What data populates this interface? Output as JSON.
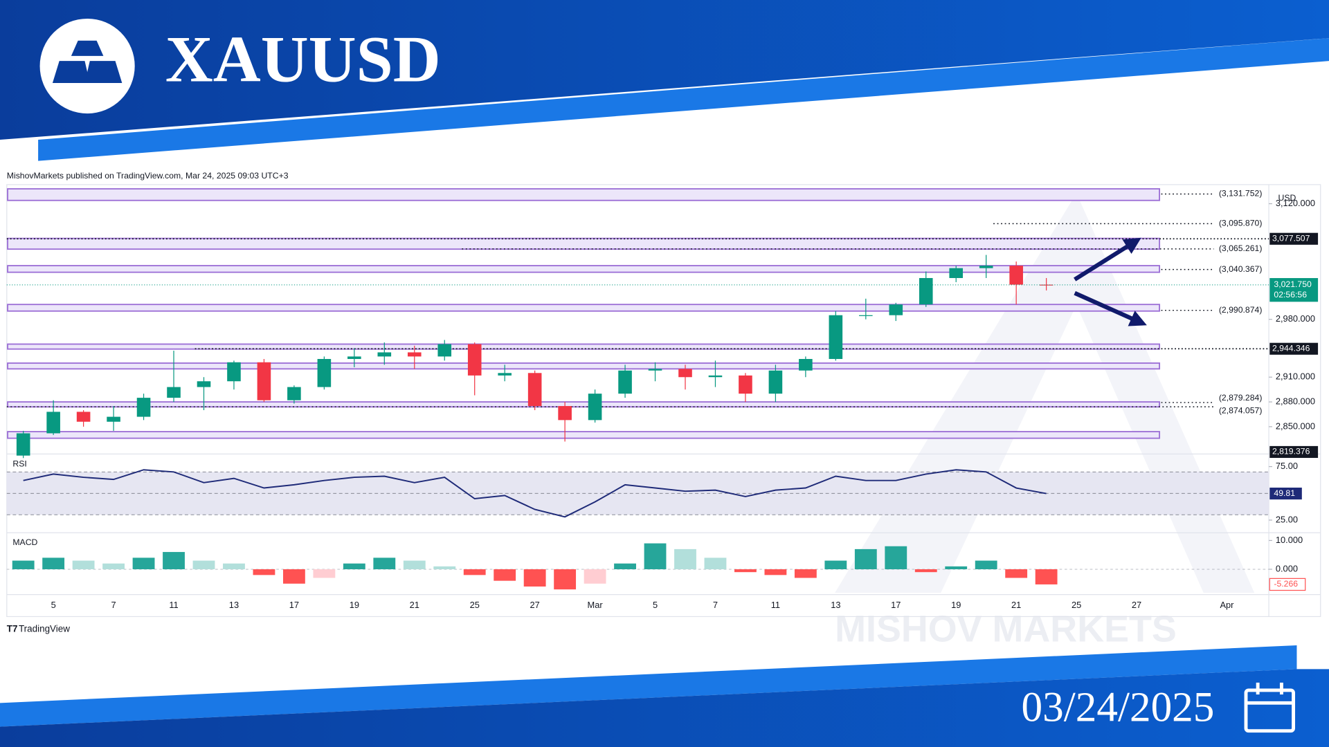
{
  "header": {
    "title": "XAUUSD",
    "date": "03/24/2025"
  },
  "footer": {
    "brand": "TradingView",
    "watermark": "MISHOV MARKETS"
  },
  "chart_data": [
    {
      "type": "candlestick",
      "attribution": "MishovMarkets published on TradingView.com, Mar 24, 2025 09:03 UTC+3",
      "currency": "USD",
      "categories": [
        null,
        "5",
        null,
        "7",
        null,
        "11",
        null,
        "13",
        null,
        "17",
        null,
        "19",
        null,
        "21",
        null,
        "25",
        null,
        "27",
        null,
        "Mar",
        null,
        "5",
        null,
        "7",
        null,
        "11",
        null,
        "13",
        null,
        "17",
        null,
        "19",
        null,
        "21",
        null,
        "25",
        null,
        "27",
        null,
        null,
        "Apr"
      ],
      "open": [
        2815,
        2842,
        2868,
        2856,
        2862,
        2885,
        2898,
        2905,
        2928,
        2882,
        2898,
        2932,
        2935,
        2940,
        2935,
        2950,
        2912,
        2915,
        2875,
        2858,
        2890,
        2918,
        2920,
        2910,
        2912,
        2890,
        2918,
        2932,
        2985,
        2985,
        2998,
        3030,
        3042,
        3045,
        3022,
        null,
        null,
        null,
        null,
        null,
        null
      ],
      "high": [
        2845,
        2882,
        2870,
        2875,
        2890,
        2942,
        2910,
        2930,
        2932,
        2900,
        2935,
        2945,
        2952,
        2948,
        2955,
        2952,
        2925,
        2918,
        2880,
        2895,
        2925,
        2928,
        2925,
        2930,
        2915,
        2925,
        2935,
        2990,
        3005,
        3000,
        3038,
        3045,
        3058,
        3050,
        3030,
        null,
        null,
        null,
        null,
        null,
        null
      ],
      "low": [
        2812,
        2840,
        2850,
        2845,
        2858,
        2880,
        2870,
        2895,
        2880,
        2878,
        2895,
        2922,
        2925,
        2920,
        2930,
        2888,
        2905,
        2870,
        2832,
        2855,
        2885,
        2905,
        2895,
        2898,
        2880,
        2880,
        2910,
        2930,
        2980,
        2978,
        2995,
        3025,
        3030,
        2998,
        3015,
        null,
        null,
        null,
        null,
        null,
        null
      ],
      "close": [
        2842,
        2868,
        2856,
        2862,
        2885,
        2898,
        2905,
        2928,
        2882,
        2898,
        2932,
        2935,
        2940,
        2935,
        2950,
        2912,
        2915,
        2875,
        2858,
        2890,
        2918,
        2920,
        2910,
        2912,
        2890,
        2918,
        2932,
        2985,
        2985,
        2998,
        3030,
        3042,
        3045,
        3022,
        3021.75,
        null,
        null,
        null,
        null,
        null,
        null
      ],
      "up_color": "#089981",
      "down_color": "#f23645",
      "ylim": [
        2818,
        3139
      ],
      "yticks": [
        {
          "value": 2850,
          "label": "2,850.000"
        },
        {
          "value": 2880,
          "label": "2,880.000"
        },
        {
          "value": 2910,
          "label": "2,910.000"
        },
        {
          "value": 2980,
          "label": "2,980.000"
        },
        {
          "value": 3120,
          "label": "3,120.000"
        }
      ],
      "zones": [
        [
          3124,
          3138
        ],
        [
          3065,
          3078
        ],
        [
          3037,
          3045
        ],
        [
          2990,
          2998
        ],
        [
          2944,
          2950
        ],
        [
          2920,
          2927
        ],
        [
          2874,
          2880
        ],
        [
          2836,
          2844
        ]
      ],
      "zone_color": "#9c6fd6",
      "levels": [
        {
          "value": 3131.752,
          "label": "(3,131.752)"
        },
        {
          "value": 3095.87,
          "label": "(3,095.870)"
        },
        {
          "value": 3065.261,
          "label": "(3,065.261)"
        },
        {
          "value": 3040.367,
          "label": "(3,040.367)"
        },
        {
          "value": 2990.874,
          "label": "(2,990.874)"
        },
        {
          "value": 2879.284,
          "label": "(2,879.284)"
        },
        {
          "value": 2874.057,
          "label": "(2,874.057)"
        }
      ],
      "price_tags": [
        {
          "value": 3077.507,
          "label": "3,077.507"
        },
        {
          "value": 2944.346,
          "label": "2,944.346"
        },
        {
          "value": 2819.376,
          "label": "2,819.376"
        }
      ],
      "last_price": {
        "value": 3021.75,
        "label": "3,021.750"
      },
      "countdown": "02:56:56"
    },
    {
      "type": "line",
      "title": "RSI",
      "color": "#1e2a78",
      "values": [
        62,
        68,
        65,
        63,
        72,
        70,
        60,
        64,
        55,
        58,
        62,
        65,
        66,
        60,
        65,
        45,
        48,
        35,
        28,
        42,
        58,
        55,
        52,
        53,
        47,
        53,
        55,
        66,
        62,
        62,
        68,
        72,
        70,
        55,
        49.81,
        null,
        null,
        null,
        null,
        null,
        null
      ],
      "ylim": [
        14,
        86
      ],
      "yticks": [
        {
          "value": 25,
          "label": "25.00"
        },
        {
          "value": 75,
          "label": "75.00"
        }
      ],
      "band": [
        30,
        70
      ],
      "midline": 50,
      "band_color": "#e6e6f2"
    },
    {
      "type": "bar",
      "title": "MACD",
      "values": [
        3,
        4,
        3,
        2,
        4,
        6,
        3,
        2,
        -2,
        -5,
        -3,
        2,
        4,
        3,
        1,
        -2,
        -4,
        -6,
        -7,
        -5,
        2,
        9,
        7,
        4,
        -1,
        -2,
        -3,
        3,
        7,
        8,
        -1,
        1,
        3,
        -3,
        -5.266,
        null,
        null,
        null,
        null,
        null,
        null
      ],
      "ylim": [
        -8.2,
        12.4
      ],
      "yticks": [
        {
          "value": 0,
          "label": "0.000"
        },
        {
          "value": 10,
          "label": "10.000"
        }
      ],
      "colors": {
        "grow_above": "#26a69a",
        "fall_above": "#b2dfdb",
        "grow_below": "#ffcdd2",
        "fall_below": "#ff5252"
      }
    }
  ]
}
